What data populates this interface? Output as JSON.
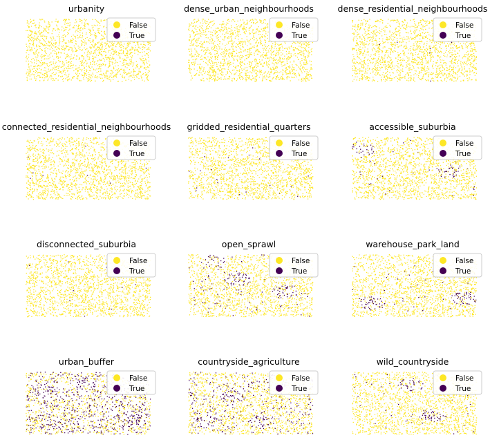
{
  "chart_data": [
    {
      "type": "scatter",
      "title": "urbanity",
      "legend": [
        "False",
        "True"
      ],
      "colors": {
        "False": "#fde725",
        "True": "#440154"
      },
      "true_density": 0.0,
      "true_clusters": []
    },
    {
      "type": "scatter",
      "title": "dense_urban_neighbourhoods",
      "legend": [
        "False",
        "True"
      ],
      "colors": {
        "False": "#fde725",
        "True": "#440154"
      },
      "true_density": 0.0,
      "true_clusters": []
    },
    {
      "type": "scatter",
      "title": "dense_residential_neighbourhoods",
      "legend": [
        "False",
        "True"
      ],
      "colors": {
        "False": "#fde725",
        "True": "#440154"
      },
      "true_density": 0.004,
      "true_clusters": []
    },
    {
      "type": "scatter",
      "title": "connected_residential_neighbourhoods",
      "legend": [
        "False",
        "True"
      ],
      "colors": {
        "False": "#fde725",
        "True": "#440154"
      },
      "true_density": 0.005,
      "true_clusters": []
    },
    {
      "type": "scatter",
      "title": "gridded_residential_quarters",
      "legend": [
        "False",
        "True"
      ],
      "colors": {
        "False": "#fde725",
        "True": "#440154"
      },
      "true_density": 0.008,
      "true_clusters": []
    },
    {
      "type": "scatter",
      "title": "accessible_suburbia",
      "legend": [
        "False",
        "True"
      ],
      "colors": {
        "False": "#fde725",
        "True": "#440154"
      },
      "true_density": 0.015,
      "true_clusters": [
        [
          0.08,
          0.2
        ],
        [
          0.78,
          0.55
        ]
      ]
    },
    {
      "type": "scatter",
      "title": "disconnected_suburbia",
      "legend": [
        "False",
        "True"
      ],
      "colors": {
        "False": "#fde725",
        "True": "#440154"
      },
      "true_density": 0.004,
      "true_clusters": []
    },
    {
      "type": "scatter",
      "title": "open_sprawl",
      "legend": [
        "False",
        "True"
      ],
      "colors": {
        "False": "#fde725",
        "True": "#440154"
      },
      "true_density": 0.06,
      "true_clusters": [
        [
          0.4,
          0.4
        ],
        [
          0.2,
          0.1
        ],
        [
          0.78,
          0.6
        ]
      ]
    },
    {
      "type": "scatter",
      "title": "warehouse_park_land",
      "legend": [
        "False",
        "True"
      ],
      "colors": {
        "False": "#fde725",
        "True": "#440154"
      },
      "true_density": 0.02,
      "true_clusters": [
        [
          0.16,
          0.78
        ],
        [
          0.9,
          0.7
        ]
      ]
    },
    {
      "type": "scatter",
      "title": "urban_buffer",
      "legend": [
        "False",
        "True"
      ],
      "colors": {
        "False": "#fde725",
        "True": "#440154"
      },
      "true_density": 0.38,
      "true_clusters": [
        [
          0.15,
          0.3
        ],
        [
          0.85,
          0.75
        ],
        [
          0.5,
          0.2
        ]
      ]
    },
    {
      "type": "scatter",
      "title": "countryside_agriculture",
      "legend": [
        "False",
        "True"
      ],
      "colors": {
        "False": "#fde725",
        "True": "#440154"
      },
      "true_density": 0.18,
      "true_clusters": [
        [
          0.6,
          0.8
        ],
        [
          0.15,
          0.8
        ],
        [
          0.35,
          0.4
        ]
      ]
    },
    {
      "type": "scatter",
      "title": "wild_countryside",
      "legend": [
        "False",
        "True"
      ],
      "colors": {
        "False": "#fde725",
        "True": "#440154"
      },
      "true_density": 0.03,
      "true_clusters": [
        [
          0.65,
          0.7
        ],
        [
          0.48,
          0.2
        ]
      ]
    }
  ]
}
